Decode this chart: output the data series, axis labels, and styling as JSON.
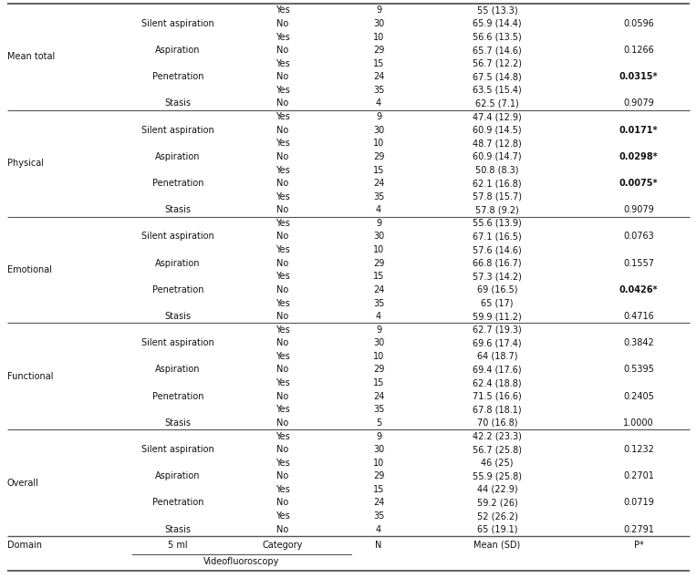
{
  "videofluoroscopy_header": "Videofluoroscopy",
  "sections": [
    {
      "domain": "Overall",
      "rows": [
        {
          "subcategory": "Stasis",
          "cat": "No",
          "n": "4",
          "mean_sd": "65 (19.1)",
          "p": "0.2791",
          "p_bold": false
        },
        {
          "subcategory": "",
          "cat": "Yes",
          "n": "35",
          "mean_sd": "52 (26.2)",
          "p": "",
          "p_bold": false
        },
        {
          "subcategory": "Penetration",
          "cat": "No",
          "n": "24",
          "mean_sd": "59.2 (26)",
          "p": "0.0719",
          "p_bold": false
        },
        {
          "subcategory": "",
          "cat": "Yes",
          "n": "15",
          "mean_sd": "44 (22.9)",
          "p": "",
          "p_bold": false
        },
        {
          "subcategory": "Aspiration",
          "cat": "No",
          "n": "29",
          "mean_sd": "55.9 (25.8)",
          "p": "0.2701",
          "p_bold": false
        },
        {
          "subcategory": "",
          "cat": "Yes",
          "n": "10",
          "mean_sd": "46 (25)",
          "p": "",
          "p_bold": false
        },
        {
          "subcategory": "Silent aspiration",
          "cat": "No",
          "n": "30",
          "mean_sd": "56.7 (25.8)",
          "p": "0.1232",
          "p_bold": false
        },
        {
          "subcategory": "",
          "cat": "Yes",
          "n": "9",
          "mean_sd": "42.2 (23.3)",
          "p": "",
          "p_bold": false
        }
      ]
    },
    {
      "domain": "Functional",
      "rows": [
        {
          "subcategory": "Stasis",
          "cat": "No",
          "n": "5",
          "mean_sd": "70 (16.8)",
          "p": "1.0000",
          "p_bold": false
        },
        {
          "subcategory": "",
          "cat": "Yes",
          "n": "35",
          "mean_sd": "67.8 (18.1)",
          "p": "",
          "p_bold": false
        },
        {
          "subcategory": "Penetration",
          "cat": "No",
          "n": "24",
          "mean_sd": "71.5 (16.6)",
          "p": "0.2405",
          "p_bold": false
        },
        {
          "subcategory": "",
          "cat": "Yes",
          "n": "15",
          "mean_sd": "62.4 (18.8)",
          "p": "",
          "p_bold": false
        },
        {
          "subcategory": "Aspiration",
          "cat": "No",
          "n": "29",
          "mean_sd": "69.4 (17.6)",
          "p": "0.5395",
          "p_bold": false
        },
        {
          "subcategory": "",
          "cat": "Yes",
          "n": "10",
          "mean_sd": "64 (18.7)",
          "p": "",
          "p_bold": false
        },
        {
          "subcategory": "Silent aspiration",
          "cat": "No",
          "n": "30",
          "mean_sd": "69.6 (17.4)",
          "p": "0.3842",
          "p_bold": false
        },
        {
          "subcategory": "",
          "cat": "Yes",
          "n": "9",
          "mean_sd": "62.7 (19.3)",
          "p": "",
          "p_bold": false
        }
      ]
    },
    {
      "domain": "Emotional",
      "rows": [
        {
          "subcategory": "Stasis",
          "cat": "No",
          "n": "4",
          "mean_sd": "59.9 (11.2)",
          "p": "0.4716",
          "p_bold": false
        },
        {
          "subcategory": "",
          "cat": "Yes",
          "n": "35",
          "mean_sd": "65 (17)",
          "p": "",
          "p_bold": false
        },
        {
          "subcategory": "Penetration",
          "cat": "No",
          "n": "24",
          "mean_sd": "69 (16.5)",
          "p": "0.0426*",
          "p_bold": true
        },
        {
          "subcategory": "",
          "cat": "Yes",
          "n": "15",
          "mean_sd": "57.3 (14.2)",
          "p": "",
          "p_bold": false
        },
        {
          "subcategory": "Aspiration",
          "cat": "No",
          "n": "29",
          "mean_sd": "66.8 (16.7)",
          "p": "0.1557",
          "p_bold": false
        },
        {
          "subcategory": "",
          "cat": "Yes",
          "n": "10",
          "mean_sd": "57.6 (14.6)",
          "p": "",
          "p_bold": false
        },
        {
          "subcategory": "Silent aspiration",
          "cat": "No",
          "n": "30",
          "mean_sd": "67.1 (16.5)",
          "p": "0.0763",
          "p_bold": false
        },
        {
          "subcategory": "",
          "cat": "Yes",
          "n": "9",
          "mean_sd": "55.6 (13.9)",
          "p": "",
          "p_bold": false
        }
      ]
    },
    {
      "domain": "Physical",
      "rows": [
        {
          "subcategory": "Stasis",
          "cat": "No",
          "n": "4",
          "mean_sd": "57.8 (9.2)",
          "p": "0.9079",
          "p_bold": false
        },
        {
          "subcategory": "",
          "cat": "Yes",
          "n": "35",
          "mean_sd": "57.8 (15.7)",
          "p": "",
          "p_bold": false
        },
        {
          "subcategory": "Penetration",
          "cat": "No",
          "n": "24",
          "mean_sd": "62.1 (16.8)",
          "p": "0.0075*",
          "p_bold": true
        },
        {
          "subcategory": "",
          "cat": "Yes",
          "n": "15",
          "mean_sd": "50.8 (8.3)",
          "p": "",
          "p_bold": false
        },
        {
          "subcategory": "Aspiration",
          "cat": "No",
          "n": "29",
          "mean_sd": "60.9 (14.7)",
          "p": "0.0298*",
          "p_bold": true
        },
        {
          "subcategory": "",
          "cat": "Yes",
          "n": "10",
          "mean_sd": "48.7 (12.8)",
          "p": "",
          "p_bold": false
        },
        {
          "subcategory": "Silent aspiration",
          "cat": "No",
          "n": "30",
          "mean_sd": "60.9 (14.5)",
          "p": "0.0171*",
          "p_bold": true
        },
        {
          "subcategory": "",
          "cat": "Yes",
          "n": "9",
          "mean_sd": "47.4 (12.9)",
          "p": "",
          "p_bold": false
        }
      ]
    },
    {
      "domain": "Mean total",
      "rows": [
        {
          "subcategory": "Stasis",
          "cat": "No",
          "n": "4",
          "mean_sd": "62.5 (7.1)",
          "p": "0.9079",
          "p_bold": false
        },
        {
          "subcategory": "",
          "cat": "Yes",
          "n": "35",
          "mean_sd": "63.5 (15.4)",
          "p": "",
          "p_bold": false
        },
        {
          "subcategory": "Penetration",
          "cat": "No",
          "n": "24",
          "mean_sd": "67.5 (14.8)",
          "p": "0.0315*",
          "p_bold": true
        },
        {
          "subcategory": "",
          "cat": "Yes",
          "n": "15",
          "mean_sd": "56.7 (12.2)",
          "p": "",
          "p_bold": false
        },
        {
          "subcategory": "Aspiration",
          "cat": "No",
          "n": "29",
          "mean_sd": "65.7 (14.6)",
          "p": "0.1266",
          "p_bold": false
        },
        {
          "subcategory": "",
          "cat": "Yes",
          "n": "10",
          "mean_sd": "56.6 (13.5)",
          "p": "",
          "p_bold": false
        },
        {
          "subcategory": "Silent aspiration",
          "cat": "No",
          "n": "30",
          "mean_sd": "65.9 (14.4)",
          "p": "0.0596",
          "p_bold": false
        },
        {
          "subcategory": "",
          "cat": "Yes",
          "n": "9",
          "mean_sd": "55 (13.3)",
          "p": "",
          "p_bold": false
        }
      ]
    }
  ],
  "font_size": 7.0,
  "bg_color": "#ffffff",
  "line_color": "#555555"
}
